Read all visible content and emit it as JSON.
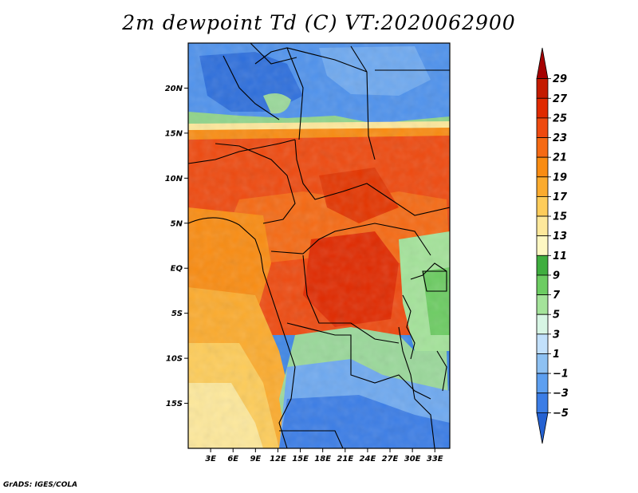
{
  "title": "2m dewpoint Td (C) VT:2020062900",
  "credit": "GrADS: IGES/COLA",
  "map": {
    "variable": "2m dewpoint Td",
    "units": "C",
    "valid_time": "2020062900",
    "lat_range": [
      -20,
      25
    ],
    "lon_range": [
      0,
      35
    ],
    "lat_ticks": [
      {
        "value": 20,
        "label": "20N"
      },
      {
        "value": 15,
        "label": "15N"
      },
      {
        "value": 10,
        "label": "10N"
      },
      {
        "value": 5,
        "label": "5N"
      },
      {
        "value": 0,
        "label": "EQ"
      },
      {
        "value": -5,
        "label": "5S"
      },
      {
        "value": -10,
        "label": "10S"
      },
      {
        "value": -15,
        "label": "15S"
      }
    ],
    "lon_ticks": [
      {
        "value": 3,
        "label": "3E"
      },
      {
        "value": 6,
        "label": "6E"
      },
      {
        "value": 9,
        "label": "9E"
      },
      {
        "value": 12,
        "label": "12E"
      },
      {
        "value": 15,
        "label": "15E"
      },
      {
        "value": 18,
        "label": "18E"
      },
      {
        "value": 21,
        "label": "21E"
      },
      {
        "value": 24,
        "label": "24E"
      },
      {
        "value": 27,
        "label": "27E"
      },
      {
        "value": 30,
        "label": "30E"
      },
      {
        "value": 33,
        "label": "33E"
      }
    ]
  },
  "colorbar": {
    "levels": [
      "29",
      "27",
      "25",
      "23",
      "21",
      "19",
      "17",
      "15",
      "13",
      "11",
      "9",
      "7",
      "5",
      "3",
      "1",
      "−1",
      "−3",
      "−5"
    ],
    "colors": [
      "#a50000",
      "#c41b00",
      "#e02a00",
      "#ee4a10",
      "#f56a14",
      "#f98c12",
      "#fbab2e",
      "#fdcc5a",
      "#fde89b",
      "#fdf7c2",
      "#3fae3f",
      "#6ccc62",
      "#a4e39a",
      "#d7f5e4",
      "#c2e0fb",
      "#8ec1f2",
      "#5d9ff0",
      "#3b7de6",
      "#2461d2"
    ]
  }
}
